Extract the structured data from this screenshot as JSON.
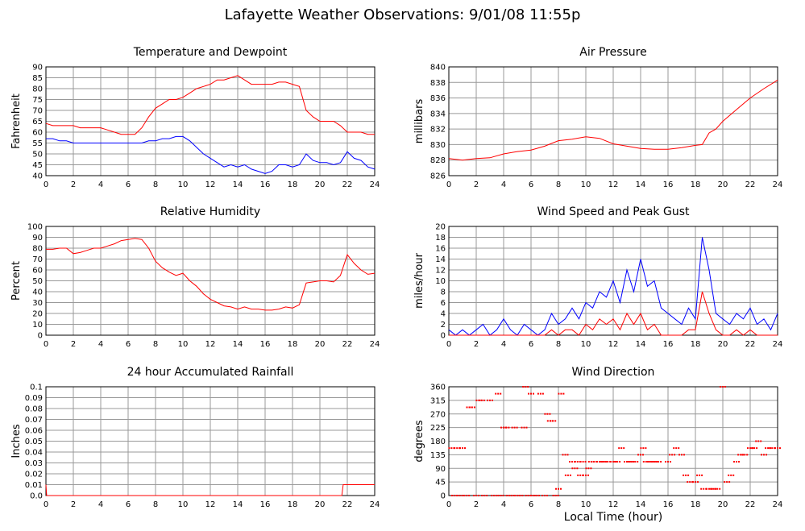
{
  "page": {
    "title": "Lafayette Weather Observations: 9/01/08 11:55p",
    "bottom_xlabel": "Local Time (hour)"
  },
  "chart_data": [
    {
      "type": "line",
      "title": "Temperature and Dewpoint",
      "xlabel": "",
      "ylabel": "Fahrenheit",
      "xlim": [
        0,
        24
      ],
      "ylim": [
        40,
        90
      ],
      "xticks": [
        0,
        2,
        4,
        6,
        8,
        10,
        12,
        14,
        16,
        18,
        20,
        22,
        24
      ],
      "yticks": [
        40,
        45,
        50,
        55,
        60,
        65,
        70,
        75,
        80,
        85,
        90
      ],
      "grid": true,
      "colors": [
        "#ff0000",
        "#0000ff"
      ],
      "series": [
        {
          "x": [
            0,
            0.5,
            1,
            1.5,
            2,
            2.5,
            3,
            3.5,
            4,
            4.5,
            5,
            5.5,
            6,
            6.5,
            7,
            7.5,
            8,
            8.5,
            9,
            9.5,
            10,
            10.5,
            11,
            11.5,
            12,
            12.5,
            13,
            13.5,
            14,
            14.5,
            15,
            15.5,
            16,
            16.5,
            17,
            17.5,
            18,
            18.5,
            19,
            19.5,
            20,
            20.5,
            21,
            21.5,
            22,
            22.5,
            23,
            23.5,
            24
          ],
          "values": [
            64,
            63,
            63,
            63,
            63,
            62,
            62,
            62,
            62,
            61,
            60,
            59,
            59,
            59,
            62,
            67,
            71,
            73,
            75,
            75,
            76,
            78,
            80,
            81,
            82,
            84,
            84,
            85,
            86,
            84,
            82,
            82,
            82,
            82,
            83,
            83,
            82,
            81,
            70,
            67,
            65,
            65,
            65,
            63,
            60,
            60,
            60,
            59,
            59
          ]
        },
        {
          "x": [
            0,
            0.5,
            1,
            1.5,
            2,
            2.5,
            3,
            3.5,
            4,
            4.5,
            5,
            5.5,
            6,
            6.5,
            7,
            7.5,
            8,
            8.5,
            9,
            9.5,
            10,
            10.5,
            11,
            11.5,
            12,
            12.5,
            13,
            13.5,
            14,
            14.5,
            15,
            15.5,
            16,
            16.5,
            17,
            17.5,
            18,
            18.5,
            19,
            19.5,
            20,
            20.5,
            21,
            21.5,
            22,
            22.5,
            23,
            23.5,
            24
          ],
          "values": [
            57,
            57,
            56,
            56,
            55,
            55,
            55,
            55,
            55,
            55,
            55,
            55,
            55,
            55,
            55,
            56,
            56,
            57,
            57,
            58,
            58,
            56,
            53,
            50,
            48,
            46,
            44,
            45,
            44,
            45,
            43,
            42,
            41,
            42,
            45,
            45,
            44,
            45,
            50,
            47,
            46,
            46,
            45,
            46,
            51,
            48,
            47,
            44,
            43
          ]
        }
      ]
    },
    {
      "type": "line",
      "title": "Air Pressure",
      "xlabel": "",
      "ylabel": "millibars",
      "xlim": [
        0,
        24
      ],
      "ylim": [
        826,
        840
      ],
      "xticks": [
        0,
        2,
        4,
        6,
        8,
        10,
        12,
        14,
        16,
        18,
        20,
        22,
        24
      ],
      "yticks": [
        826,
        828,
        830,
        832,
        834,
        836,
        838,
        840
      ],
      "grid": true,
      "colors": [
        "#ff0000"
      ],
      "series": [
        {
          "x": [
            0,
            1,
            2,
            3,
            4,
            5,
            6,
            7,
            8,
            9,
            10,
            11,
            12,
            13,
            14,
            15,
            16,
            17,
            18,
            18.5,
            19,
            19.5,
            20,
            21,
            22,
            23,
            24
          ],
          "values": [
            828.2,
            828,
            828.2,
            828.3,
            828.8,
            829.1,
            829.3,
            829.8,
            830.5,
            830.7,
            831,
            830.8,
            830.1,
            829.8,
            829.5,
            829.4,
            829.4,
            829.6,
            829.9,
            830,
            831.5,
            832,
            833,
            834.5,
            836,
            837.2,
            838.3
          ]
        }
      ]
    },
    {
      "type": "line",
      "title": "Relative Humidity",
      "xlabel": "",
      "ylabel": "Percent",
      "xlim": [
        0,
        24
      ],
      "ylim": [
        0,
        100
      ],
      "xticks": [
        0,
        2,
        4,
        6,
        8,
        10,
        12,
        14,
        16,
        18,
        20,
        22,
        24
      ],
      "yticks": [
        0,
        10,
        20,
        30,
        40,
        50,
        60,
        70,
        80,
        90,
        100
      ],
      "grid": true,
      "colors": [
        "#ff0000"
      ],
      "series": [
        {
          "x": [
            0,
            0.5,
            1,
            1.5,
            2,
            2.5,
            3,
            3.5,
            4,
            4.5,
            5,
            5.5,
            6,
            6.5,
            7,
            7.5,
            8,
            8.5,
            9,
            9.5,
            10,
            10.5,
            11,
            11.5,
            12,
            12.5,
            13,
            13.5,
            14,
            14.5,
            15,
            15.5,
            16,
            16.5,
            17,
            17.5,
            18,
            18.5,
            19,
            19.5,
            20,
            20.5,
            21,
            21.5,
            22,
            22.5,
            23,
            23.5,
            24
          ],
          "values": [
            79,
            79,
            80,
            80,
            75,
            76,
            78,
            80,
            80,
            82,
            84,
            87,
            88,
            89,
            88,
            80,
            68,
            62,
            58,
            55,
            57,
            50,
            45,
            38,
            33,
            30,
            27,
            26,
            24,
            26,
            24,
            24,
            23,
            23,
            24,
            26,
            25,
            28,
            48,
            49,
            50,
            50,
            49,
            55,
            74,
            66,
            60,
            56,
            57
          ]
        }
      ]
    },
    {
      "type": "line",
      "title": "Wind Speed and Peak Gust",
      "xlabel": "",
      "ylabel": "miles/hour",
      "xlim": [
        0,
        24
      ],
      "ylim": [
        0,
        20
      ],
      "xticks": [
        0,
        2,
        4,
        6,
        8,
        10,
        12,
        14,
        16,
        18,
        20,
        22,
        24
      ],
      "yticks": [
        0,
        2,
        4,
        6,
        8,
        10,
        12,
        14,
        16,
        18,
        20
      ],
      "grid": true,
      "colors": [
        "#0000ff",
        "#ff0000"
      ],
      "series": [
        {
          "x": [
            0,
            0.5,
            1,
            1.5,
            2,
            2.5,
            3,
            3.5,
            4,
            4.5,
            5,
            5.5,
            6,
            6.5,
            7,
            7.5,
            8,
            8.5,
            9,
            9.5,
            10,
            10.5,
            11,
            11.5,
            12,
            12.5,
            13,
            13.5,
            14,
            14.5,
            15,
            15.5,
            16,
            16.5,
            17,
            17.5,
            18,
            18.5,
            19,
            19.5,
            20,
            20.5,
            21,
            21.5,
            22,
            22.5,
            23,
            23.5,
            24
          ],
          "values": [
            1,
            0,
            1,
            0,
            1,
            2,
            0,
            1,
            3,
            1,
            0,
            2,
            1,
            0,
            1,
            4,
            2,
            3,
            5,
            3,
            6,
            5,
            8,
            7,
            10,
            6,
            12,
            8,
            14,
            9,
            10,
            5,
            4,
            3,
            2,
            5,
            3,
            18,
            12,
            4,
            3,
            2,
            4,
            3,
            5,
            2,
            3,
            1,
            4
          ]
        },
        {
          "x": [
            0,
            0.5,
            1,
            1.5,
            2,
            2.5,
            3,
            3.5,
            4,
            4.5,
            5,
            5.5,
            6,
            6.5,
            7,
            7.5,
            8,
            8.5,
            9,
            9.5,
            10,
            10.5,
            11,
            11.5,
            12,
            12.5,
            13,
            13.5,
            14,
            14.5,
            15,
            15.5,
            16,
            16.5,
            17,
            17.5,
            18,
            18.5,
            19,
            19.5,
            20,
            20.5,
            21,
            21.5,
            22,
            22.5,
            23,
            23.5,
            24
          ],
          "values": [
            0,
            0,
            0,
            0,
            0,
            0,
            0,
            0,
            0,
            0,
            0,
            0,
            0,
            0,
            0,
            1,
            0,
            1,
            1,
            0,
            2,
            1,
            3,
            2,
            3,
            1,
            4,
            2,
            4,
            1,
            2,
            0,
            0,
            0,
            0,
            1,
            1,
            8,
            4,
            1,
            0,
            0,
            1,
            0,
            1,
            0,
            0,
            0,
            0
          ]
        }
      ]
    },
    {
      "type": "line",
      "title": "24 hour Accumulated Rainfall",
      "xlabel": "",
      "ylabel": "Inches",
      "xlim": [
        0,
        24
      ],
      "ylim": [
        0,
        0.1
      ],
      "xticks": [
        0,
        2,
        4,
        6,
        8,
        10,
        12,
        14,
        16,
        18,
        20,
        22,
        24
      ],
      "yticks": [
        0.0,
        0.01,
        0.02,
        0.03,
        0.04,
        0.05,
        0.06,
        0.07,
        0.08,
        0.09,
        0.1
      ],
      "ytick_labels": [
        "0.0",
        "0.01",
        "0.02",
        "0.03",
        "0.04",
        "0.05",
        "0.06",
        "0.07",
        "0.08",
        "0.09",
        "0.1"
      ],
      "grid": true,
      "colors": [
        "#ff0000"
      ],
      "series": [
        {
          "x": [
            0,
            0.05,
            21.6,
            21.7,
            24
          ],
          "values": [
            0.01,
            0,
            0,
            0.01,
            0.01
          ]
        }
      ]
    },
    {
      "type": "scatter",
      "title": "Wind Direction",
      "xlabel": "",
      "ylabel": "degrees",
      "xlim": [
        0,
        24
      ],
      "ylim": [
        0,
        360
      ],
      "xticks": [
        0,
        2,
        4,
        6,
        8,
        10,
        12,
        14,
        16,
        18,
        20,
        22,
        24
      ],
      "yticks": [
        0,
        45,
        90,
        135,
        180,
        225,
        270,
        315,
        360
      ],
      "grid": true,
      "colors": [
        "#ff0000"
      ],
      "series": [
        {
          "x": [
            0.2,
            0.4,
            0.6,
            0.8,
            1,
            1.3,
            1.5,
            1.7,
            2,
            2.2,
            2.4,
            2.6,
            3,
            3.3,
            3.6,
            3.8,
            4,
            4.2,
            4.4,
            4.6,
            4.8,
            5,
            5.2,
            5.5,
            5.6,
            5.8,
            6,
            6.2,
            6.4,
            6.7,
            7,
            7.2,
            7.4,
            7.6,
            7.8,
            8,
            8.2,
            8.5,
            8.7,
            9,
            9.2,
            9.4,
            9.6,
            9.8,
            10,
            10.2,
            10.4,
            10.6,
            11,
            11.3,
            11.6,
            12,
            12.3,
            12.6,
            13,
            13.3,
            13.6,
            14,
            14.2,
            14.4,
            14.7,
            15,
            15.3,
            16,
            16.3,
            16.6,
            17,
            17.3,
            17.6,
            18,
            18.3,
            18.6,
            19,
            19.3,
            19.6,
            20,
            20.3,
            20.6,
            21,
            21.3,
            21.6,
            22,
            22.3,
            22.6,
            23,
            23.3,
            23.6,
            24
          ],
          "values": [
            157,
            0,
            157,
            0,
            157,
            0,
            292,
            292,
            0,
            315,
            315,
            0,
            315,
            0,
            337,
            0,
            225,
            225,
            0,
            0,
            225,
            0,
            0,
            225,
            360,
            0,
            337,
            0,
            0,
            337,
            0,
            270,
            247,
            247,
            0,
            22,
            337,
            135,
            67,
            112,
            90,
            112,
            67,
            112,
            67,
            90,
            112,
            112,
            112,
            112,
            112,
            112,
            112,
            157,
            112,
            112,
            112,
            135,
            157,
            112,
            112,
            112,
            112,
            112,
            135,
            157,
            135,
            67,
            45,
            45,
            67,
            22,
            22,
            22,
            22,
            360,
            45,
            67,
            112,
            135,
            135,
            157,
            157,
            180,
            135,
            157,
            157,
            157
          ]
        }
      ]
    }
  ]
}
